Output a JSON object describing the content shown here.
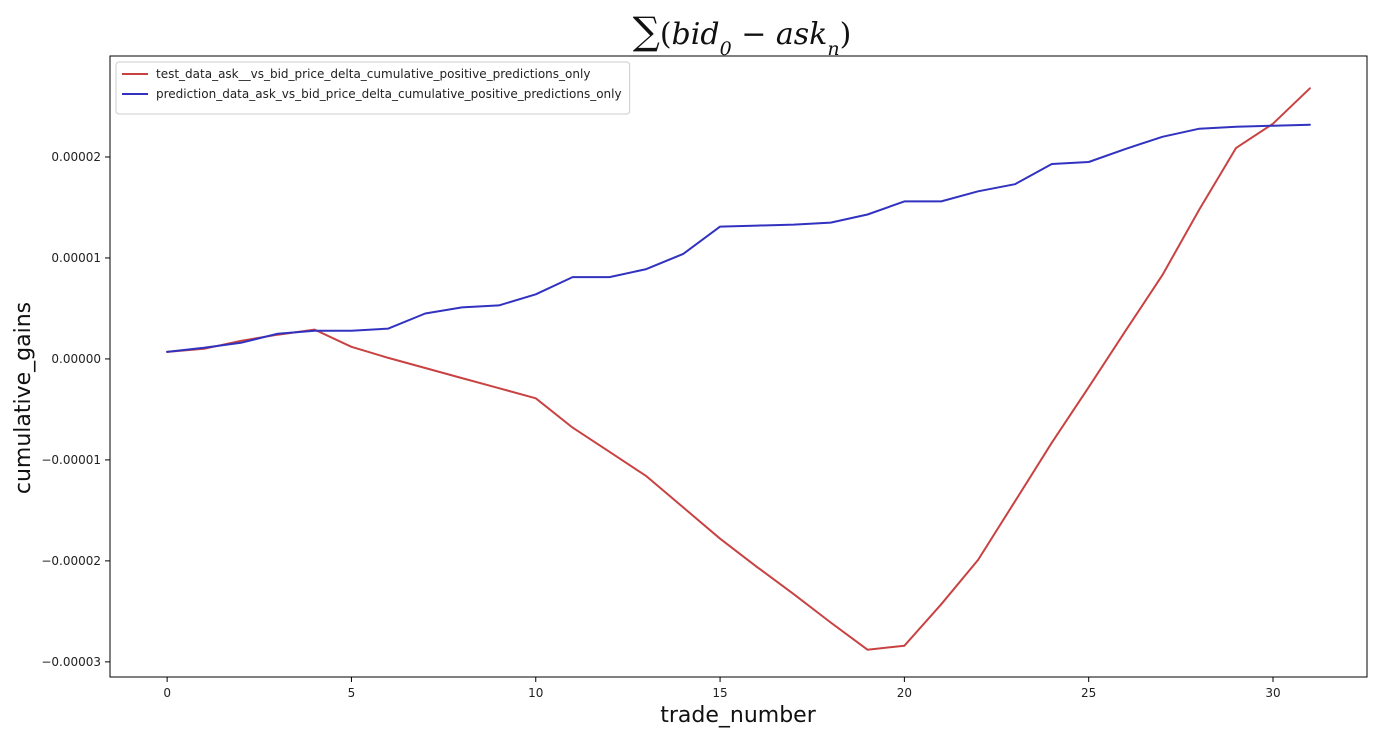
{
  "chart_data": {
    "type": "line",
    "title": {
      "sum_symbol": "∑",
      "open": "(",
      "bid": "bid",
      "bid_sub": "0",
      "minus": " − ",
      "ask": "ask",
      "ask_sub": "n",
      "close": ")"
    },
    "xlabel": "trade_number",
    "ylabel": "cumulative_gains",
    "xlim": [
      -1.55,
      32.55
    ],
    "ylim": [
      -3.15e-05,
      3e-05
    ],
    "xticks": [
      0,
      5,
      10,
      15,
      20,
      25,
      30
    ],
    "xtick_labels": [
      "0",
      "5",
      "10",
      "15",
      "20",
      "25",
      "30"
    ],
    "yticks": [
      2e-05,
      1e-05,
      0.0,
      -1e-05,
      -2e-05,
      -3e-05
    ],
    "ytick_labels": [
      "0.00002",
      "0.00001",
      "0.00000",
      "−0.00001",
      "−0.00002",
      "−0.00003"
    ],
    "grid": false,
    "legend_position": "top-left",
    "x": [
      0,
      1,
      2,
      3,
      4,
      5,
      6,
      7,
      8,
      9,
      10,
      11,
      12,
      13,
      14,
      15,
      16,
      17,
      18,
      19,
      20,
      21,
      22,
      23,
      24,
      25,
      26,
      27,
      28,
      29,
      30,
      31
    ],
    "series": [
      {
        "name": "test_data_ask__vs_bid_price_delta_cumulative_positive_predictions_only",
        "color": "#c94242",
        "values": [
          7e-07,
          1e-06,
          1.8e-06,
          2.4e-06,
          2.9e-06,
          1.2e-06,
          1e-07,
          -9e-07,
          -1.9e-06,
          -2.9e-06,
          -3.9e-06,
          -6.8e-06,
          -9.2e-06,
          -1.16e-05,
          -1.47e-05,
          -1.78e-05,
          -2.06e-05,
          -2.33e-05,
          -2.61e-05,
          -2.88e-05,
          -2.84e-05,
          -2.43e-05,
          -1.99e-05,
          -1.41e-05,
          -8.3e-06,
          -2.8e-06,
          2.8e-06,
          8.3e-06,
          1.48e-05,
          2.09e-05,
          2.33e-05,
          2.68e-05
        ]
      },
      {
        "name": "prediction_data_ask_vs_bid_price_delta_cumulative_positive_predictions_only",
        "color": "#3232c0",
        "values": [
          7e-07,
          1.1e-06,
          1.6e-06,
          2.5e-06,
          2.8e-06,
          2.8e-06,
          3e-06,
          4.5e-06,
          5.1e-06,
          5.3e-06,
          6.4e-06,
          8.1e-06,
          8.1e-06,
          8.9e-06,
          1.04e-05,
          1.31e-05,
          1.32e-05,
          1.33e-05,
          1.35e-05,
          1.43e-05,
          1.56e-05,
          1.56e-05,
          1.66e-05,
          1.73e-05,
          1.93e-05,
          1.95e-05,
          2.08e-05,
          2.2e-05,
          2.28e-05,
          2.3e-05,
          2.31e-05,
          2.32e-05
        ]
      }
    ]
  }
}
